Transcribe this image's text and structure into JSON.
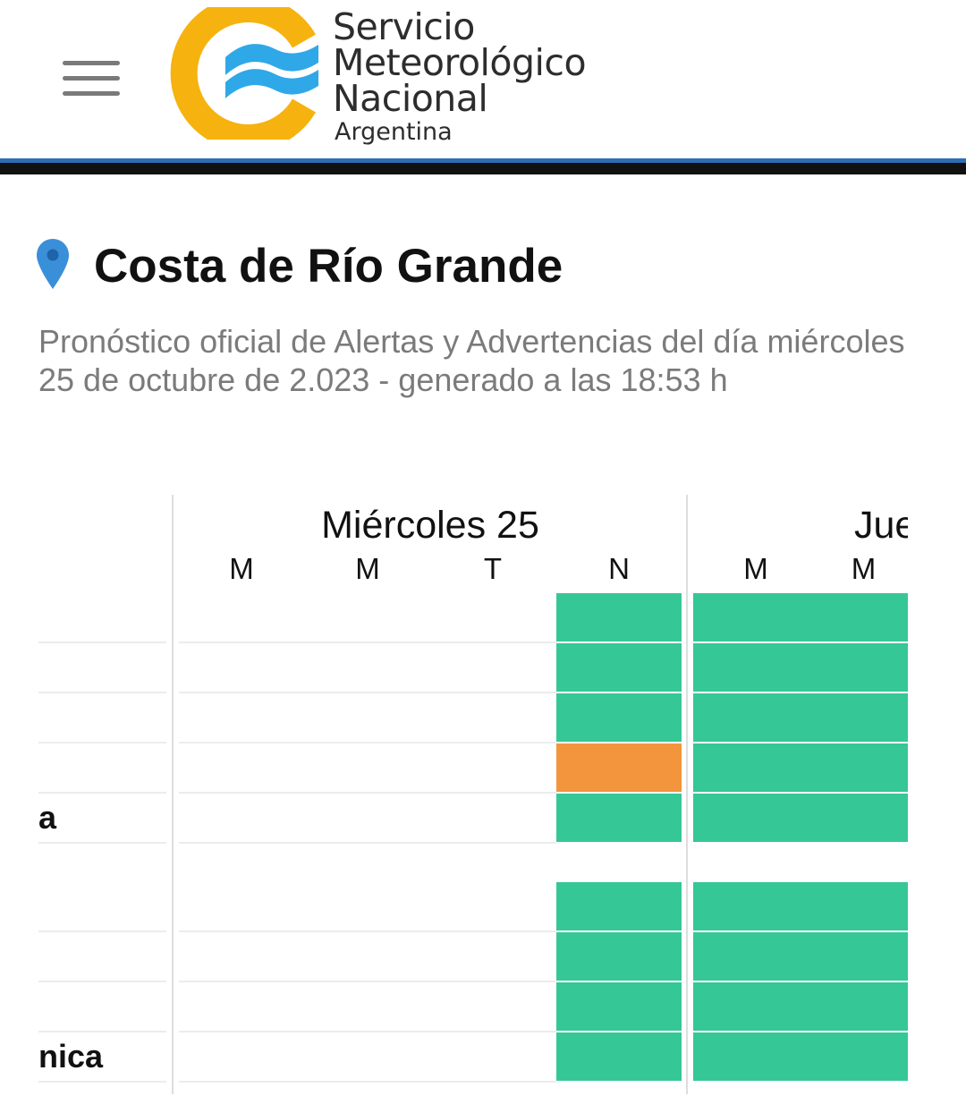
{
  "header": {
    "menu_icon": "hamburger-menu-icon",
    "logo": {
      "line1": "Servicio",
      "line2": "Meteorológico",
      "line3": "Nacional",
      "country": "Argentina",
      "colors": {
        "ring": "#f6b20f",
        "waves": "#2fa8e8"
      }
    },
    "rule_colors": {
      "blue": "#2e6db3",
      "black": "#111111"
    }
  },
  "location": {
    "icon": "map-pin-icon",
    "title": "Costa de Río Grande",
    "subtitle": "Pronóstico oficial de Alertas y Advertencias del día miércoles 25 de octubre de 2.023 - generado a las 18:53 h"
  },
  "forecast": {
    "days": [
      {
        "label": "Miércoles 25",
        "periods": [
          "M",
          "M",
          "T",
          "N"
        ]
      },
      {
        "label": "Jueves",
        "periods": [
          "M",
          "M"
        ]
      }
    ],
    "level_colors": {
      "none": "#ffffff",
      "green": "#36c796",
      "orange": "#f3953d"
    },
    "groups": [
      {
        "rows": [
          {
            "label": "",
            "levels": [
              "none",
              "none",
              "none",
              "green",
              "green",
              "green"
            ]
          },
          {
            "label": "",
            "levels": [
              "none",
              "none",
              "none",
              "green",
              "green",
              "green"
            ]
          },
          {
            "label": "",
            "levels": [
              "none",
              "none",
              "none",
              "green",
              "green",
              "green"
            ]
          },
          {
            "label": "",
            "levels": [
              "none",
              "none",
              "none",
              "orange",
              "green",
              "green"
            ]
          },
          {
            "label": "a",
            "levels": [
              "none",
              "none",
              "none",
              "green",
              "green",
              "green"
            ]
          }
        ]
      },
      {
        "rows": [
          {
            "label": "",
            "levels": [
              "none",
              "none",
              "none",
              "green",
              "green",
              "green"
            ]
          },
          {
            "label": "",
            "levels": [
              "none",
              "none",
              "none",
              "green",
              "green",
              "green"
            ]
          },
          {
            "label": "",
            "levels": [
              "none",
              "none",
              "none",
              "green",
              "green",
              "green"
            ]
          },
          {
            "label": "nica",
            "levels": [
              "none",
              "none",
              "none",
              "green",
              "green",
              "green"
            ]
          }
        ]
      }
    ]
  }
}
